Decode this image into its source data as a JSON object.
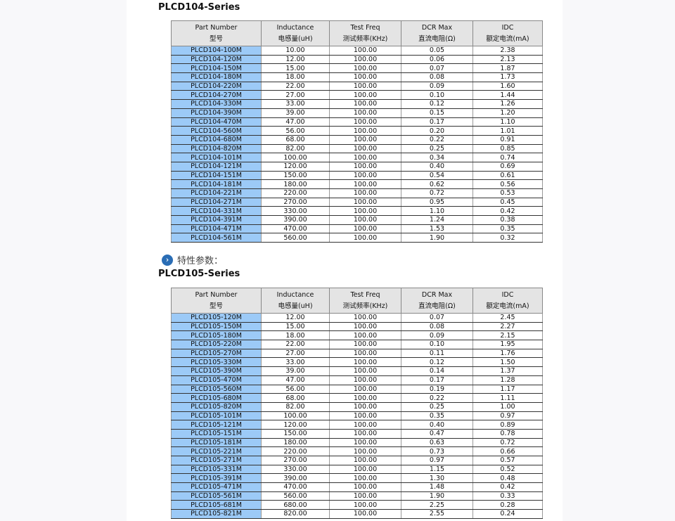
{
  "section_label": "特性参数：",
  "headers": [
    {
      "en": "Part Number",
      "cn": "型号"
    },
    {
      "en": "Inductance",
      "cn": "电感量(uH)"
    },
    {
      "en": "Test Freq",
      "cn": "测试频率(KHz)"
    },
    {
      "en": "DCR Max",
      "cn": "直流电阻(Ω)"
    },
    {
      "en": "IDC",
      "cn": "额定电流(mA)"
    }
  ],
  "tables": [
    {
      "title": "PLCD104-Series",
      "rows": [
        [
          "PLCD104-100M",
          "10.00",
          "100.00",
          "0.05",
          "2.38"
        ],
        [
          "PLCD104-120M",
          "12.00",
          "100.00",
          "0.06",
          "2.13"
        ],
        [
          "PLCD104-150M",
          "15.00",
          "100.00",
          "0.07",
          "1.87"
        ],
        [
          "PLCD104-180M",
          "18.00",
          "100.00",
          "0.08",
          "1.73"
        ],
        [
          "PLCD104-220M",
          "22.00",
          "100.00",
          "0.09",
          "1.60"
        ],
        [
          "PLCD104-270M",
          "27.00",
          "100.00",
          "0.10",
          "1.44"
        ],
        [
          "PLCD104-330M",
          "33.00",
          "100.00",
          "0.12",
          "1.26"
        ],
        [
          "PLCD104-390M",
          "39.00",
          "100.00",
          "0.15",
          "1.20"
        ],
        [
          "PLCD104-470M",
          "47.00",
          "100.00",
          "0.17",
          "1.10"
        ],
        [
          "PLCD104-560M",
          "56.00",
          "100.00",
          "0.20",
          "1.01"
        ],
        [
          "PLCD104-680M",
          "68.00",
          "100.00",
          "0.22",
          "0.91"
        ],
        [
          "PLCD104-820M",
          "82.00",
          "100.00",
          "0.25",
          "0.85"
        ],
        [
          "PLCD104-101M",
          "100.00",
          "100.00",
          "0.34",
          "0.74"
        ],
        [
          "PLCD104-121M",
          "120.00",
          "100.00",
          "0.40",
          "0.69"
        ],
        [
          "PLCD104-151M",
          "150.00",
          "100.00",
          "0.54",
          "0.61"
        ],
        [
          "PLCD104-181M",
          "180.00",
          "100.00",
          "0.62",
          "0.56"
        ],
        [
          "PLCD104-221M",
          "220.00",
          "100.00",
          "0.72",
          "0.53"
        ],
        [
          "PLCD104-271M",
          "270.00",
          "100.00",
          "0.95",
          "0.45"
        ],
        [
          "PLCD104-331M",
          "330.00",
          "100.00",
          "1.10",
          "0.42"
        ],
        [
          "PLCD104-391M",
          "390.00",
          "100.00",
          "1.24",
          "0.38"
        ],
        [
          "PLCD104-471M",
          "470.00",
          "100.00",
          "1.53",
          "0.35"
        ],
        [
          "PLCD104-561M",
          "560.00",
          "100.00",
          "1.90",
          "0.32"
        ]
      ]
    },
    {
      "title": "PLCD105-Series",
      "rows": [
        [
          "PLCD105-120M",
          "12.00",
          "100.00",
          "0.07",
          "2.45"
        ],
        [
          "PLCD105-150M",
          "15.00",
          "100.00",
          "0.08",
          "2.27"
        ],
        [
          "PLCD105-180M",
          "18.00",
          "100.00",
          "0.09",
          "2.15"
        ],
        [
          "PLCD105-220M",
          "22.00",
          "100.00",
          "0.10",
          "1.95"
        ],
        [
          "PLCD105-270M",
          "27.00",
          "100.00",
          "0.11",
          "1.76"
        ],
        [
          "PLCD105-330M",
          "33.00",
          "100.00",
          "0.12",
          "1.50"
        ],
        [
          "PLCD105-390M",
          "39.00",
          "100.00",
          "0.14",
          "1.37"
        ],
        [
          "PLCD105-470M",
          "47.00",
          "100.00",
          "0.17",
          "1.28"
        ],
        [
          "PLCD105-560M",
          "56.00",
          "100.00",
          "0.19",
          "1.17"
        ],
        [
          "PLCD105-680M",
          "68.00",
          "100.00",
          "0.22",
          "1.11"
        ],
        [
          "PLCD105-820M",
          "82.00",
          "100.00",
          "0.25",
          "1.00"
        ],
        [
          "PLCD105-101M",
          "100.00",
          "100.00",
          "0.35",
          "0.97"
        ],
        [
          "PLCD105-121M",
          "120.00",
          "100.00",
          "0.40",
          "0.89"
        ],
        [
          "PLCD105-151M",
          "150.00",
          "100.00",
          "0.47",
          "0.78"
        ],
        [
          "PLCD105-181M",
          "180.00",
          "100.00",
          "0.63",
          "0.72"
        ],
        [
          "PLCD105-221M",
          "220.00",
          "100.00",
          "0.73",
          "0.66"
        ],
        [
          "PLCD105-271M",
          "270.00",
          "100.00",
          "0.97",
          "0.57"
        ],
        [
          "PLCD105-331M",
          "330.00",
          "100.00",
          "1.15",
          "0.52"
        ],
        [
          "PLCD105-391M",
          "390.00",
          "100.00",
          "1.30",
          "0.48"
        ],
        [
          "PLCD105-471M",
          "470.00",
          "100.00",
          "1.48",
          "0.42"
        ],
        [
          "PLCD105-561M",
          "560.00",
          "100.00",
          "1.90",
          "0.33"
        ],
        [
          "PLCD105-681M",
          "680.00",
          "100.00",
          "2.25",
          "0.28"
        ],
        [
          "PLCD105-821M",
          "820.00",
          "100.00",
          "2.55",
          "0.24"
        ]
      ]
    }
  ],
  "colors": {
    "part_number_bg": "#9ccaf7",
    "header_bg": "#e4e4e4",
    "icon": "#2a6db5"
  }
}
